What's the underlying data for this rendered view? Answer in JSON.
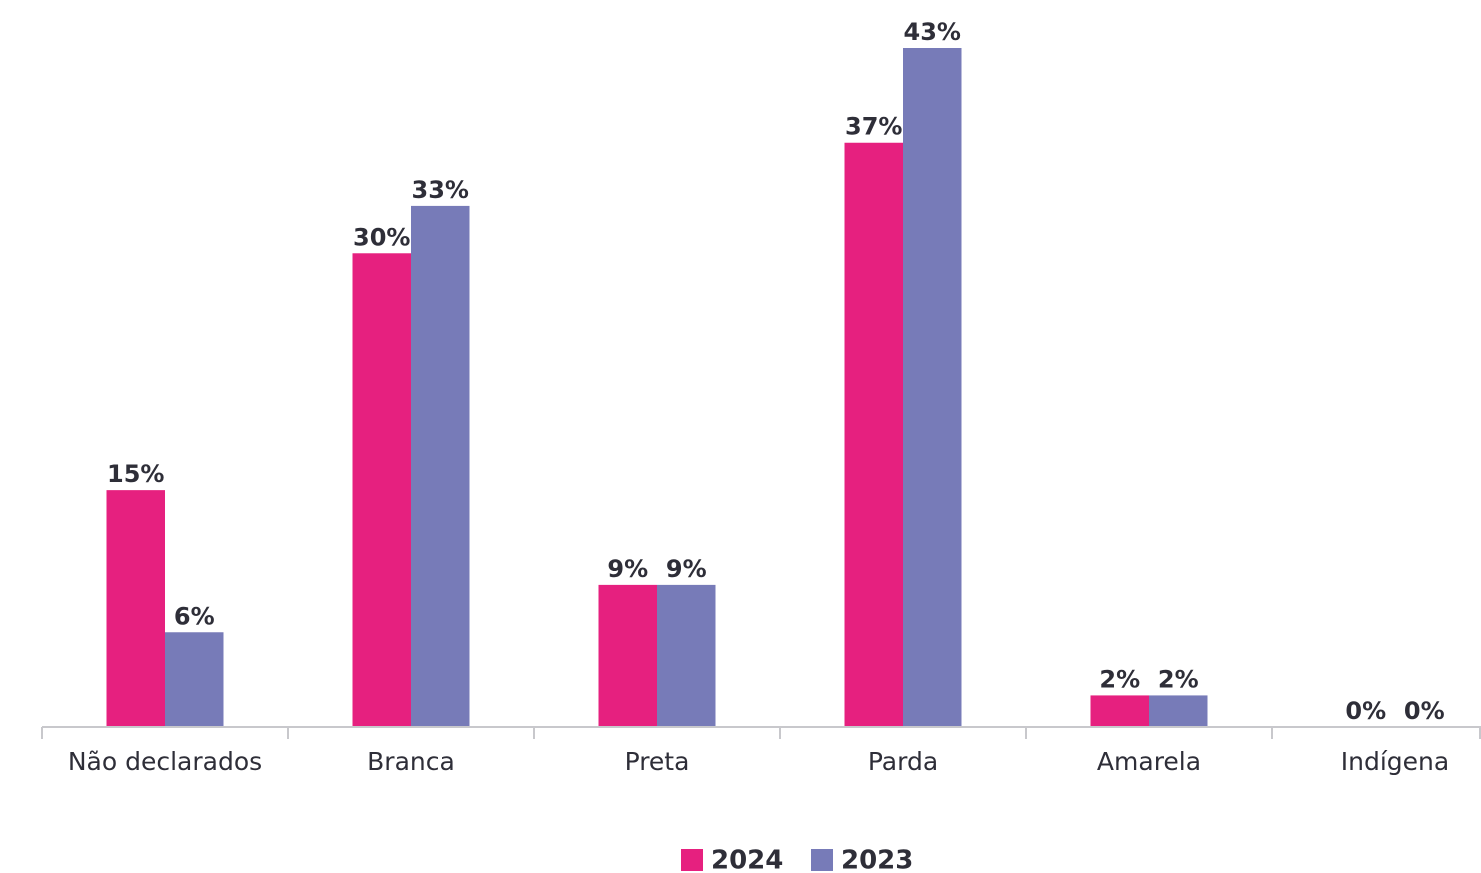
{
  "chart_data": {
    "type": "bar",
    "categories": [
      "Não declarados",
      "Branca",
      "Preta",
      "Parda",
      "Amarela",
      "Indígena"
    ],
    "series": [
      {
        "name": "2024",
        "color": "#e6207f",
        "values": [
          15,
          30,
          9,
          37,
          2,
          0
        ],
        "value_labels": [
          "15%",
          "30%",
          "9%",
          "37%",
          "2%",
          "0%"
        ]
      },
      {
        "name": "2023",
        "color": "#777bb8",
        "values": [
          6,
          33,
          9,
          43,
          2,
          0
        ],
        "value_labels": [
          "6%",
          "33%",
          "9%",
          "43%",
          "2%",
          "0%"
        ]
      }
    ],
    "legend": "bottom"
  }
}
